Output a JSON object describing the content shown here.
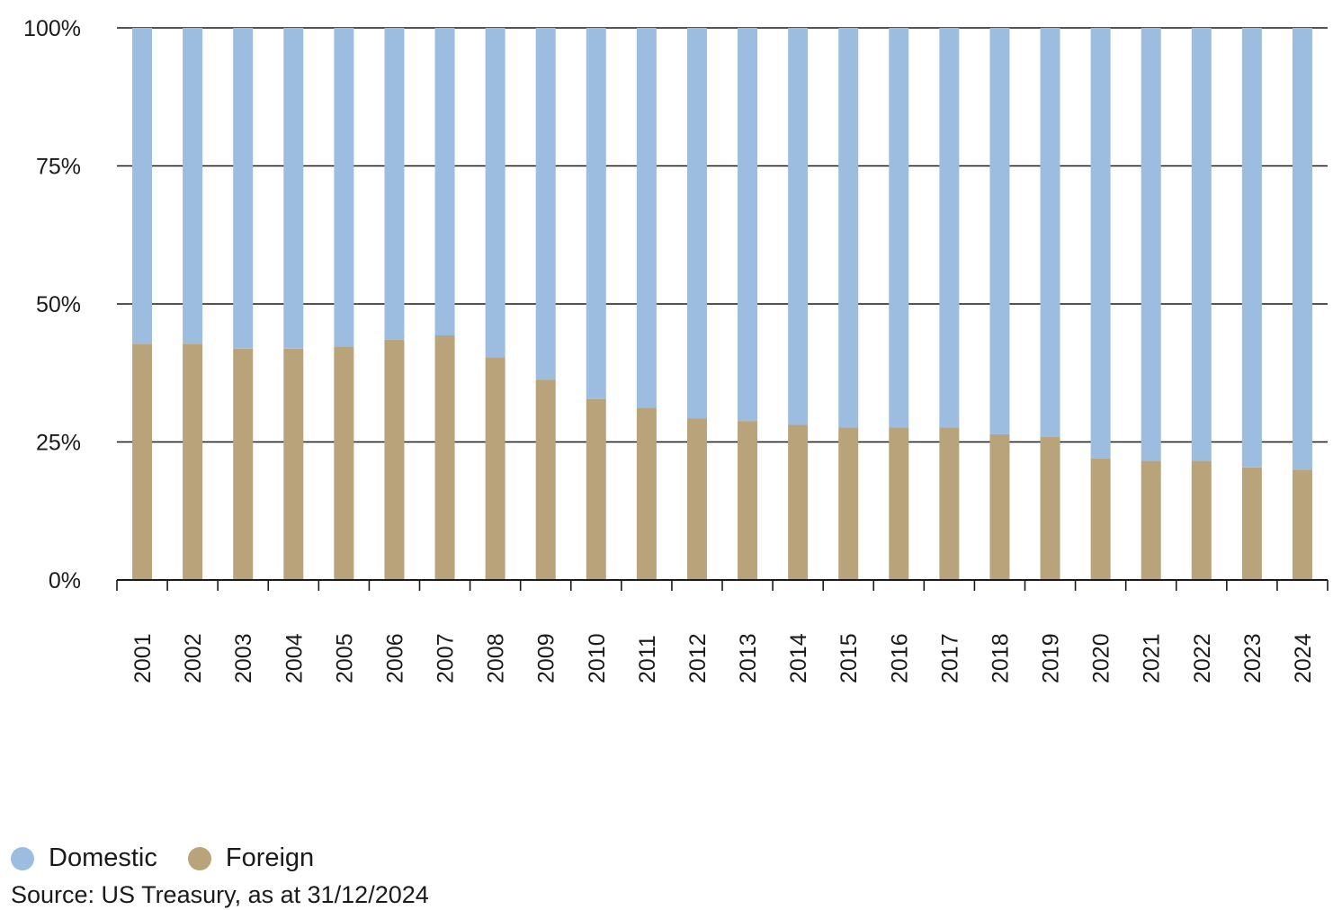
{
  "chart_data": {
    "type": "bar",
    "stacked": true,
    "categories": [
      "2001",
      "2002",
      "2003",
      "2004",
      "2005",
      "2006",
      "2007",
      "2008",
      "2009",
      "2010",
      "2011",
      "2012",
      "2013",
      "2014",
      "2015",
      "2016",
      "2017",
      "2018",
      "2019",
      "2020",
      "2021",
      "2022",
      "2023",
      "2024"
    ],
    "series": [
      {
        "name": "Foreign",
        "color": "#b9a37b",
        "values": [
          42.8,
          42.8,
          41.9,
          41.9,
          42.3,
          43.5,
          44.3,
          40.3,
          36.3,
          32.8,
          31.2,
          29.3,
          28.8,
          28.1,
          27.6,
          27.6,
          27.6,
          26.4,
          25.9,
          22.0,
          21.6,
          21.6,
          20.4,
          20.0
        ]
      },
      {
        "name": "Domestic",
        "color": "#9dbde0",
        "values": [
          57.2,
          57.2,
          58.1,
          58.1,
          57.7,
          56.5,
          55.7,
          59.7,
          63.7,
          67.2,
          68.8,
          70.7,
          71.2,
          71.9,
          72.4,
          72.4,
          72.4,
          73.6,
          74.1,
          78.0,
          78.4,
          78.4,
          79.6,
          80.0
        ]
      }
    ],
    "ylim": [
      0,
      100
    ],
    "yticks": [
      0,
      25,
      50,
      75,
      100
    ],
    "ytick_labels": [
      "0%",
      "25%",
      "50%",
      "75%",
      "100%"
    ],
    "grid": true,
    "legend_placement": "bottom-left"
  },
  "legend": {
    "items": [
      {
        "label": "Domestic",
        "color": "#9dbde0"
      },
      {
        "label": "Foreign",
        "color": "#b9a37b"
      }
    ]
  },
  "source_note": "Source: US Treasury, as at 31/12/2024"
}
